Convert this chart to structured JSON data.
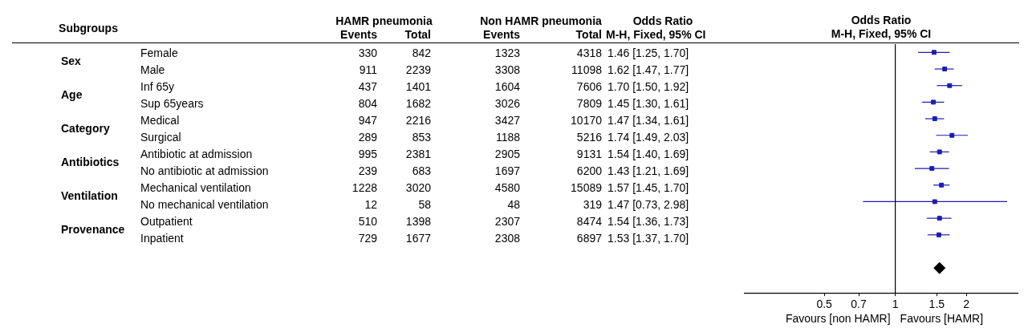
{
  "chart_data": [
    {
      "type": "other",
      "title": "Subgroups",
      "categories": [
        "Female",
        "Male",
        "Inf 65y",
        "Sup 65years",
        "Medical",
        "Surgical",
        "Antibiotic at admission",
        "No antibiotic at admission",
        "Mechanical ventilation",
        "No mechanical ventilation",
        "Outpatient",
        "Inpatient"
      ],
      "y_categories": [
        "Sex",
        "Age",
        "Category",
        "Antibiotics",
        "Ventilation",
        "Provenance"
      ],
      "annotations": [
        "HAMR pneumonia",
        "Non HAMR pneumonia",
        "Odds Ratio"
      ],
      "series": [
        {
          "name": "Events",
          "values": [
            330,
            911,
            437,
            804,
            947,
            289,
            995,
            239,
            1228,
            12,
            510,
            729
          ]
        },
        {
          "name": "Total",
          "values": [
            842,
            2239,
            1401,
            1682,
            2216,
            853,
            2381,
            683,
            3020,
            58,
            1398,
            1677
          ]
        },
        {
          "name": "Events",
          "values": [
            1323,
            3308,
            1604,
            3026,
            3427,
            1188,
            2905,
            1697,
            4580,
            48,
            2307,
            2308
          ]
        },
        {
          "name": "Total",
          "values": [
            4318,
            11098,
            7606,
            7809,
            10170,
            5216,
            9131,
            6200,
            15089,
            319,
            8474,
            6897
          ]
        },
        {
          "name": "M-H, Fixed, 95% CI",
          "values": [
            1.46,
            1.62,
            1.7,
            1.45,
            1.47,
            1.74,
            1.54,
            1.43,
            1.57,
            1.47,
            1.54,
            1.53
          ],
          "value_labels": [
            "1.46 [1.25, 1.70]",
            "1.62 [1.47, 1.77]",
            "1.70 [1.50, 1.92]",
            "1.45 [1.30, 1.61]",
            "1.47 [1.34, 1.61]",
            "1.74 [1.49, 2.03]",
            "1.54 [1.40, 1.69]",
            "1.43 [1.21, 1.69]",
            "1.57 [1.45, 1.70]",
            "1.47 [0.73, 2.98]",
            "1.54 [1.36, 1.73]",
            "1.53 [1.37, 1.70]"
          ]
        }
      ],
      "data_labels": true
    },
    {
      "type": "scatter",
      "orientation": "horizontal",
      "title": "Odds Ratio",
      "subtitle": "M-H, Fixed, 95% CI",
      "categories": [
        null,
        null,
        null,
        null,
        null,
        null,
        null,
        null,
        null,
        null,
        null,
        null,
        null,
        null,
        null
      ],
      "series": [
        {
          "color": "#1c1cb0",
          "marker": "square",
          "values": [
            1.46,
            1.62,
            1.7,
            1.45,
            1.47,
            1.74,
            1.54,
            1.43,
            1.57,
            1.47,
            1.54,
            1.53,
            null,
            null,
            null
          ],
          "errors": [
            [
              1.25,
              1.7
            ],
            [
              1.47,
              1.77
            ],
            [
              1.5,
              1.92
            ],
            [
              1.3,
              1.61
            ],
            [
              1.34,
              1.61
            ],
            [
              1.49,
              2.03
            ],
            [
              1.4,
              1.69
            ],
            [
              1.21,
              1.69
            ],
            [
              1.45,
              1.7
            ],
            [
              0.73,
              2.98
            ],
            [
              1.36,
              1.73
            ],
            [
              1.37,
              1.7
            ],
            null,
            null,
            null
          ]
        },
        {
          "color": "#000000",
          "marker": "diamond",
          "values": [
            null,
            null,
            null,
            null,
            null,
            null,
            null,
            null,
            null,
            null,
            null,
            null,
            null,
            1.54,
            null
          ]
        }
      ],
      "log": "x",
      "xlim": [
        0.23,
        3.3
      ],
      "xticks": [
        0.5,
        0.7,
        1,
        1.5,
        2
      ],
      "tick_labels": "x",
      "ref_lines": [
        {
          "axis": "x",
          "value": 1,
          "color": "#000000"
        }
      ],
      "annotations": [
        "Favours [non HAMR]",
        "Favours [HAMR]"
      ]
    }
  ]
}
